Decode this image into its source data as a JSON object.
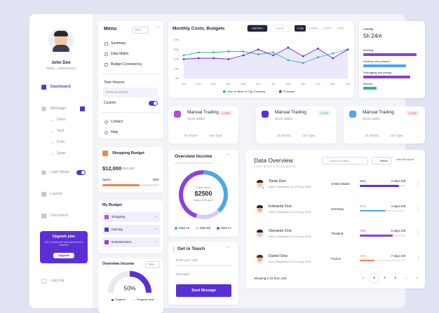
{
  "sidebar": {
    "user_name": "John Doe",
    "user_status": "Status : Administrator",
    "nav": {
      "dashboard": "Dashboard",
      "message": "Message",
      "light_mode": "Light Mode",
      "layout": "Layout",
      "document": "Document"
    },
    "message_items": [
      "Inbox",
      "Sent",
      "Draft",
      "Spam"
    ],
    "upgrade": {
      "title": "Upgrade plan",
      "text": "Get 1 month free and unlock all Pro features",
      "button": "Upgrade"
    },
    "logout": "Log Out"
  },
  "menu": {
    "title": "Menu",
    "period": "Year",
    "items": [
      "Summary",
      "Data Matrix",
      "Budget Consistency"
    ],
    "time_horizon": "Time Horizon",
    "horizon_value": "Previous Month",
    "custom": "Custom",
    "footer_items": [
      "Contact",
      "Help"
    ]
  },
  "shopping_budget": {
    "title": "Shopping Budget",
    "amount": "$12,000",
    "total": "/$24,509",
    "spent_label": "Spent",
    "spent": {
      "value": 65,
      "label": "65%"
    }
  },
  "my_budget": {
    "title": "My Budget",
    "items": [
      "Shopping",
      "Gaming",
      "Entertainment"
    ]
  },
  "overview_income_small": {
    "title": "Overview Income",
    "period": "Year",
    "progress": {
      "value": 50,
      "label": "50%"
    },
    "legend": [
      "Progress",
      "Progress done"
    ]
  },
  "monthly_chart": {
    "type": "line",
    "title": "Monthly Costs, Budgets",
    "buttons": [
      "Add Item",
      "Export"
    ],
    "ranges": [
      "1 Day",
      "1 Week",
      "1 Month",
      "1 Year"
    ],
    "categories": [
      "Jan",
      "Feb",
      "Mar",
      "Apr",
      "May",
      "Jun",
      "Jul",
      "Aug",
      "Sep",
      "Oct",
      "Nov",
      "Dec"
    ],
    "series": [
      {
        "name": "Sum of Value in City, Currency",
        "color": "#2bb3a4",
        "values": [
          24,
          27,
          27,
          28,
          28,
          25,
          27,
          19,
          16,
          22,
          26,
          30
        ]
      },
      {
        "name": "Forecast",
        "color": "#5b2fd6",
        "values": [
          20,
          21,
          21,
          20,
          24,
          30,
          24,
          32,
          23,
          31,
          21,
          30
        ]
      }
    ],
    "ylim": [
      0,
      40
    ],
    "yticks": [
      {
        "value": 0,
        "label": "0M"
      },
      {
        "value": 10,
        "label": "10M"
      },
      {
        "value": 20,
        "label": "20M"
      },
      {
        "value": 30,
        "label": "30M"
      },
      {
        "value": 40,
        "label": "40M"
      }
    ],
    "grid": true
  },
  "activity": {
    "title": "Activity",
    "duration": "5h 24m",
    "items": [
      {
        "label": "Meeting",
        "value": 100,
        "color": "#8b3fd9"
      },
      {
        "label": "Develop new product",
        "value": 80,
        "color": "#4aa8e8"
      },
      {
        "label": "Debugging and testing",
        "value": 88,
        "color": "#8b3fd9"
      },
      {
        "label": "Review",
        "value": 25,
        "color": "#2bb3a4"
      }
    ]
  },
  "trading_cards": [
    {
      "title": "Manual Trading",
      "subtitle": "Stock Wallet",
      "change": "1.29%",
      "stocks": "32 Stocks",
      "types": "124 Type"
    },
    {
      "title": "Manual Trading",
      "subtitle": "Stock Wallet",
      "change": "1.29%",
      "stocks": "32 Stocks",
      "types": "124 Type"
    },
    {
      "title": "Manual Trading",
      "subtitle": "Stock Wallet",
      "change": "1.29%",
      "stocks": "32 Stocks",
      "types": "124 Type"
    }
  ],
  "overview_income": {
    "title": "Overview Income",
    "subtitle": "Lorem ipsum is simply dummy",
    "center_label": "Daily Value",
    "center_value": "$2500",
    "center_caption": "Daily profit goal",
    "segments": [
      {
        "name": "Data Aa",
        "color": "#4aa8e8",
        "value": 38
      },
      {
        "name": "Data Bb",
        "color": "#d6cdf7",
        "value": 17
      },
      {
        "name": "Data Cc",
        "color": "#8a3fe0",
        "value": 45
      }
    ]
  },
  "contact": {
    "title": "Get in Touch",
    "email_placeholder": "Enter your mail*",
    "message_placeholder": "Message*",
    "button": "Send Message"
  },
  "data_overview": {
    "title": "Data Overview",
    "subtitle": "Lorem ipsum is simply dummy",
    "search": "Search product",
    "filters": "Filters",
    "report_link": "View full report",
    "rows": [
      {
        "name": "Tania Doe",
        "meta": "New | Registered on 23 Aug, 2026",
        "country": "United States",
        "progress": {
          "value": 86,
          "label": "86%"
        },
        "deadline": "3 days left"
      },
      {
        "name": "Edwards Doe",
        "meta": "New | Registered on 23 Aug, 2026",
        "country": "Germany",
        "progress": {
          "value": 57,
          "label": "57%"
        },
        "deadline": "4 days left"
      },
      {
        "name": "Stevanie Doe",
        "meta": "New | Registered on 23 Aug, 2026",
        "country": "Thailand",
        "progress": {
          "value": 73,
          "label": "73%"
        },
        "deadline": "6 days left"
      },
      {
        "name": "Daniel Doe",
        "meta": "New | Registered on 23 Aug, 2026",
        "country": "France",
        "progress": {
          "value": 33,
          "label": "33%"
        },
        "deadline": "7 days left"
      }
    ],
    "footer": "Showing 1-10 from 100",
    "pages": [
      "1",
      "2",
      "3",
      "..."
    ]
  }
}
